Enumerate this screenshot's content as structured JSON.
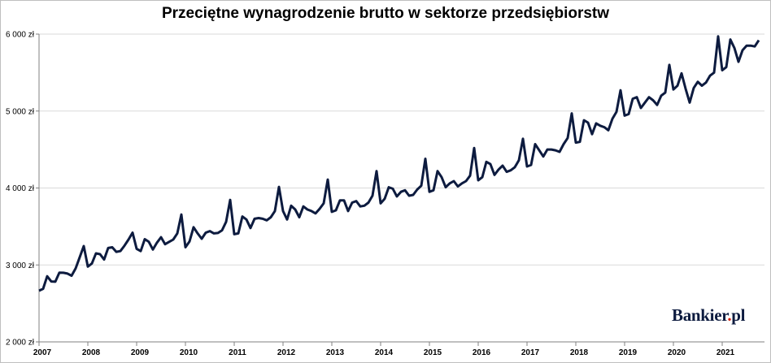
{
  "colors": {
    "line": "#0d1b3f",
    "grid": "#d9d9d9",
    "logo": "#0d1b3f",
    "logo_dot": "#d81e05"
  },
  "logo": {
    "part1": "Bankier",
    "dot": ".",
    "part2": "pl"
  },
  "chart_data": {
    "type": "line",
    "title": "Przeciętne wynagrodzenie brutto w sektorze przedsiębiorstw",
    "xlabel": "",
    "ylabel": "",
    "ylim": [
      2000,
      6000
    ],
    "yticks": [
      2000,
      3000,
      4000,
      5000,
      6000
    ],
    "ytick_labels": [
      "2 000 zł",
      "3 000 zł",
      "4 000 zł",
      "5 000 zł",
      "6 000 zł"
    ],
    "xticks": [
      "2007",
      "2008",
      "2009",
      "2010",
      "2011",
      "2012",
      "2013",
      "2014",
      "2015",
      "2016",
      "2017",
      "2018",
      "2019",
      "2020",
      "2021"
    ],
    "grid": "horizontal",
    "x_start": "2007-01",
    "frequency": "monthly",
    "series": [
      {
        "values": [
          2665,
          2690,
          2853,
          2785,
          2782,
          2900,
          2898,
          2888,
          2860,
          2955,
          3100,
          3245,
          2978,
          3020,
          3150,
          3140,
          3070,
          3220,
          3230,
          3170,
          3180,
          3250,
          3330,
          3420,
          3210,
          3180,
          3335,
          3300,
          3200,
          3290,
          3360,
          3270,
          3300,
          3330,
          3410,
          3655,
          3230,
          3305,
          3490,
          3410,
          3340,
          3420,
          3440,
          3410,
          3415,
          3450,
          3560,
          3845,
          3400,
          3410,
          3630,
          3590,
          3480,
          3600,
          3610,
          3600,
          3580,
          3620,
          3700,
          4015,
          3700,
          3590,
          3770,
          3720,
          3620,
          3760,
          3720,
          3700,
          3670,
          3730,
          3800,
          4110,
          3690,
          3710,
          3840,
          3840,
          3700,
          3810,
          3830,
          3760,
          3770,
          3810,
          3900,
          4220,
          3800,
          3860,
          4010,
          3990,
          3890,
          3950,
          3970,
          3900,
          3910,
          3980,
          4030,
          4380,
          3950,
          3970,
          4220,
          4140,
          4010,
          4060,
          4090,
          4020,
          4060,
          4090,
          4160,
          4520,
          4100,
          4140,
          4340,
          4310,
          4170,
          4240,
          4290,
          4210,
          4230,
          4270,
          4360,
          4640,
          4280,
          4300,
          4570,
          4490,
          4410,
          4500,
          4500,
          4490,
          4470,
          4570,
          4650,
          4970,
          4590,
          4600,
          4880,
          4850,
          4700,
          4840,
          4810,
          4790,
          4750,
          4900,
          4990,
          5270,
          4940,
          4960,
          5160,
          5180,
          5040,
          5110,
          5180,
          5140,
          5080,
          5200,
          5240,
          5600,
          5280,
          5330,
          5490,
          5290,
          5110,
          5300,
          5380,
          5330,
          5370,
          5460,
          5500,
          5970,
          5530,
          5570,
          5930,
          5820,
          5640,
          5790,
          5850,
          5850,
          5840,
          5920
        ]
      }
    ]
  }
}
